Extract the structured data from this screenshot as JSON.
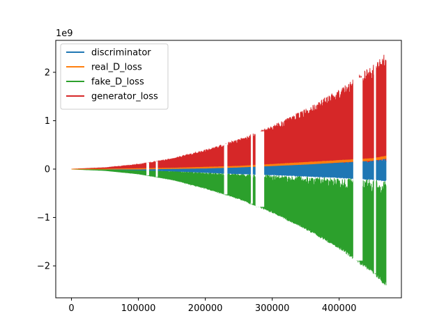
{
  "chart_data": {
    "type": "line",
    "title": "",
    "xlabel": "",
    "ylabel": "",
    "y_offset_label": "1e9",
    "xlim": [
      -23500,
      493000
    ],
    "ylim": [
      -2.66,
      2.66
    ],
    "x_ticks": [
      {
        "value": 0,
        "label": "0"
      },
      {
        "value": 100000,
        "label": "100000"
      },
      {
        "value": 200000,
        "label": "200000"
      },
      {
        "value": 300000,
        "label": "300000"
      },
      {
        "value": 400000,
        "label": "400000"
      }
    ],
    "y_ticks": [
      {
        "value": 2,
        "label": "2"
      },
      {
        "value": 1,
        "label": "1"
      },
      {
        "value": 0,
        "label": "0"
      },
      {
        "value": -1,
        "label": "−1"
      },
      {
        "value": -2,
        "label": "−2"
      }
    ],
    "x_max": 470000,
    "grid": false,
    "legend_position": "top-left",
    "series": [
      {
        "name": "discriminator",
        "color": "#1f77b4",
        "envelope": {
          "x": [
            0,
            50000,
            100000,
            150000,
            200000,
            250000,
            300000,
            350000,
            400000,
            450000,
            470000
          ],
          "upper": [
            0.0,
            0.0,
            0.01,
            0.02,
            0.03,
            0.05,
            0.08,
            0.12,
            0.15,
            0.18,
            0.22
          ],
          "lower": [
            0.0,
            0.0,
            -0.02,
            -0.04,
            -0.07,
            -0.1,
            -0.12,
            -0.15,
            -0.18,
            -0.22,
            -0.25
          ]
        }
      },
      {
        "name": "real_D_loss",
        "color": "#ff7f0e",
        "envelope": {
          "x": [
            0,
            50000,
            100000,
            150000,
            200000,
            250000,
            300000,
            350000,
            400000,
            450000,
            470000
          ],
          "upper": [
            0.0,
            0.0,
            0.01,
            0.02,
            0.04,
            0.06,
            0.1,
            0.14,
            0.18,
            0.22,
            0.27
          ],
          "lower": [
            0.0,
            0.0,
            0.0,
            0.01,
            0.02,
            0.04,
            0.07,
            0.1,
            0.14,
            0.18,
            0.22
          ]
        }
      },
      {
        "name": "fake_D_loss",
        "color": "#2ca02c",
        "envelope": {
          "x": [
            0,
            50000,
            100000,
            150000,
            200000,
            250000,
            300000,
            350000,
            400000,
            450000,
            470000
          ],
          "upper": [
            0.0,
            -0.01,
            -0.02,
            -0.04,
            -0.06,
            -0.09,
            -0.12,
            -0.15,
            -0.18,
            -0.21,
            -0.24
          ],
          "lower": [
            0.0,
            -0.03,
            -0.1,
            -0.22,
            -0.4,
            -0.62,
            -0.9,
            -1.25,
            -1.65,
            -2.15,
            -2.43
          ]
        }
      },
      {
        "name": "generator_loss",
        "color": "#d62728",
        "envelope": {
          "x": [
            0,
            50000,
            100000,
            150000,
            200000,
            250000,
            300000,
            350000,
            400000,
            450000,
            470000
          ],
          "upper": [
            0.0,
            0.03,
            0.1,
            0.22,
            0.4,
            0.62,
            0.9,
            1.25,
            1.65,
            2.15,
            2.43
          ],
          "lower": [
            0.0,
            0.0,
            0.0,
            0.01,
            0.01,
            0.02,
            0.03,
            0.05,
            0.07,
            0.1,
            0.12
          ]
        }
      }
    ],
    "gaps": [
      {
        "x0": 112000,
        "x1": 116000
      },
      {
        "x0": 126000,
        "x1": 129000
      },
      {
        "x0": 228000,
        "x1": 233000
      },
      {
        "x0": 268000,
        "x1": 271000
      },
      {
        "x0": 275000,
        "x1": 288000
      },
      {
        "x0": 421000,
        "x1": 435000
      },
      {
        "x0": 452000,
        "x1": 455000
      }
    ]
  }
}
